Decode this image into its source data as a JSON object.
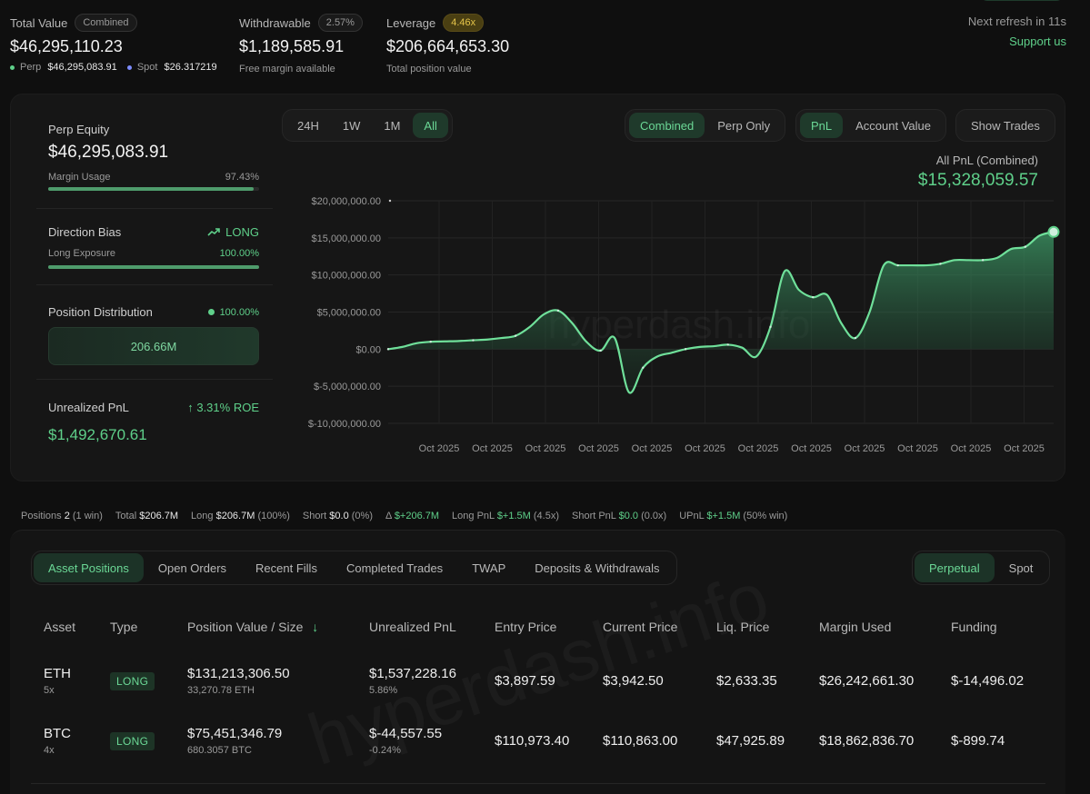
{
  "header": {
    "total_value": {
      "label": "Total Value",
      "pill": "Combined",
      "value": "$46,295,110.23",
      "perp_label": "Perp",
      "perp_value": "$46,295,083.91",
      "spot_label": "Spot",
      "spot_value": "$26.317219"
    },
    "withdrawable": {
      "label": "Withdrawable",
      "pill": "2.57%",
      "value": "$1,189,585.91",
      "sub": "Free margin available"
    },
    "leverage": {
      "label": "Leverage",
      "pill": "4.46x",
      "value": "$206,664,653.30",
      "sub": "Total position value"
    },
    "refresh": "Next refresh in 11s",
    "support": "Support us"
  },
  "left_panel": {
    "perp_equity": {
      "label": "Perp Equity",
      "value": "$46,295,083.91",
      "margin_label": "Margin Usage",
      "margin_pct": "97.43%",
      "margin_fill": 0.9743
    },
    "direction": {
      "label": "Direction Bias",
      "value": "LONG",
      "exposure_label": "Long Exposure",
      "exposure_pct": "100.00%",
      "exposure_fill": 1.0
    },
    "distribution": {
      "label": "Position Distribution",
      "pct": "100.00%",
      "box": "206.66M"
    },
    "upnl": {
      "label": "Unrealized PnL",
      "roe": "3.31% ROE",
      "value": "$1,492,670.61"
    }
  },
  "controls": {
    "ranges": [
      "24H",
      "1W",
      "1M",
      "All"
    ],
    "range_active": 3,
    "modes": [
      "Combined",
      "Perp Only"
    ],
    "mode_active": 0,
    "metrics": [
      "PnL",
      "Account Value"
    ],
    "metric_active": 0,
    "show_trades": "Show Trades"
  },
  "chart_header": {
    "label": "All PnL (Combined)",
    "value": "$15,328,059.57"
  },
  "watermark": "hyperdash.info",
  "chart_data": {
    "type": "area",
    "ylim": [
      -10000000,
      20000000
    ],
    "yticks": [
      20000000,
      15000000,
      10000000,
      5000000,
      0,
      -5000000,
      -10000000
    ],
    "ytick_labels": [
      "$20,000,000.00",
      "$15,000,000.00",
      "$10,000,000.00",
      "$5,000,000.00",
      "$0.00",
      "$-5,000,000.00",
      "$-10,000,000.00"
    ],
    "xtick_labels": [
      "Oct 2025",
      "Oct 2025",
      "Oct 2025",
      "Oct 2025",
      "Oct 2025",
      "Oct 2025",
      "Oct 2025",
      "Oct 2025",
      "Oct 2025",
      "Oct 2025",
      "Oct 2025",
      "Oct 2025"
    ],
    "grid": true,
    "values": [
      0,
      300000,
      800000,
      1000000,
      1050000,
      1100000,
      1200000,
      1300000,
      1500000,
      1800000,
      3000000,
      4700000,
      5200000,
      3500000,
      1000000,
      -200000,
      1500000,
      -5800000,
      -2500000,
      -1000000,
      -500000,
      0,
      300000,
      400000,
      600000,
      200000,
      -1000000,
      3000000,
      10500000,
      8000000,
      7000000,
      7300000,
      3500000,
      1500000,
      5000000,
      11300000,
      11300000,
      11300000,
      11300000,
      11500000,
      12000000,
      12000000,
      12000000,
      12300000,
      13500000,
      13800000,
      15300000,
      15800000
    ]
  },
  "stats": {
    "positions_label": "Positions",
    "positions": "2",
    "positions_win": "(1 win)",
    "total_label": "Total",
    "total": "$206.7M",
    "long_label": "Long",
    "long": "$206.7M",
    "long_pct": "(100%)",
    "short_label": "Short",
    "short": "$0.0",
    "short_pct": "(0%)",
    "delta_label": "Δ",
    "delta": "$+206.7M",
    "longpnl_label": "Long PnL",
    "longpnl": "$+1.5M",
    "longpnl_x": "(4.5x)",
    "shortpnl_label": "Short PnL",
    "shortpnl": "$0.0",
    "shortpnl_x": "(0.0x)",
    "upnl_label": "UPnL",
    "upnl": "$+1.5M",
    "upnl_win": "(50% win)"
  },
  "tabs": [
    "Asset Positions",
    "Open Orders",
    "Recent Fills",
    "Completed Trades",
    "TWAP",
    "Deposits & Withdrawals"
  ],
  "tab_active": 0,
  "market_tabs": [
    "Perpetual",
    "Spot"
  ],
  "market_active": 0,
  "table": {
    "headers": [
      "Asset",
      "Type",
      "Position Value / Size",
      "Unrealized PnL",
      "Entry Price",
      "Current Price",
      "Liq. Price",
      "Margin Used",
      "Funding"
    ],
    "sort_icon": "↓",
    "rows": [
      {
        "asset": "ETH",
        "lev": "5x",
        "type": "LONG",
        "value": "$131,213,306.50",
        "size": "33,270.78 ETH",
        "upnl": "$1,537,228.16",
        "upnl_pct": "5.86%",
        "upnl_sign": "pos",
        "entry": "$3,897.59",
        "current": "$3,942.50",
        "liq": "$2,633.35",
        "margin": "$26,242,661.30",
        "funding": "$-14,496.02"
      },
      {
        "asset": "BTC",
        "lev": "4x",
        "type": "LONG",
        "value": "$75,451,346.79",
        "size": "680.3057 BTC",
        "upnl": "$-44,557.55",
        "upnl_pct": "-0.24%",
        "upnl_sign": "neg",
        "entry": "$110,973.40",
        "current": "$110,863.00",
        "liq": "$47,925.89",
        "margin": "$18,862,836.70",
        "funding": "$-899.74"
      }
    ]
  }
}
